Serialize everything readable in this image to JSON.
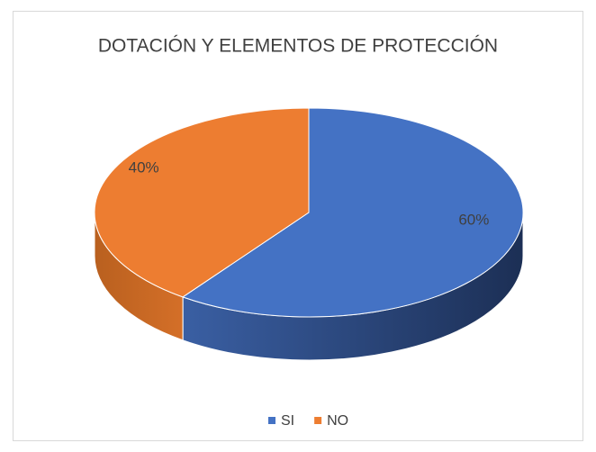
{
  "chart_data": {
    "type": "pie",
    "title": "DOTACIÓN Y ELEMENTOS DE PROTECCIÓN",
    "categories": [
      "SI",
      "NO"
    ],
    "values": [
      60,
      40
    ],
    "value_labels": [
      "60%",
      "40%"
    ],
    "colors": [
      "#4472c4",
      "#ed7d31"
    ],
    "legend": "bottom"
  }
}
